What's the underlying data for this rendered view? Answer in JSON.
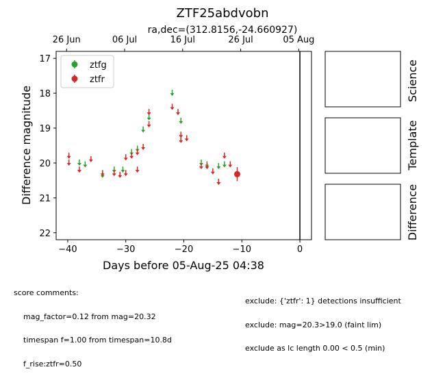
{
  "title": "ZTF25abdvobn",
  "subtitle": "ra,dec=(312.8156,-24.660927)",
  "chart_data": {
    "type": "scatter",
    "xlabel": "Days before 05-Aug-25 04:38",
    "ylabel": "Difference magnitude",
    "xlim": [
      -42,
      2
    ],
    "ylim": [
      22.2,
      16.8
    ],
    "y_inverted": true,
    "xticks": [
      -40,
      -30,
      -20,
      -10,
      0
    ],
    "yticks": [
      17,
      18,
      19,
      20,
      21,
      22
    ],
    "top_axis_ticks": [
      {
        "x": -40.2,
        "label": "26 Jun"
      },
      {
        "x": -30.2,
        "label": "06 Jul"
      },
      {
        "x": -20.2,
        "label": "16 Jul"
      },
      {
        "x": -10.2,
        "label": "26 Jul"
      },
      {
        "x": -0.2,
        "label": "05 Aug"
      }
    ],
    "vline_x": 0,
    "legend_position": "upper-left",
    "series": [
      {
        "name": "ztfg",
        "color": "#2ca02c",
        "upper_limits": [
          [
            -38,
            20.0
          ],
          [
            -37,
            20.05
          ],
          [
            -34,
            20.35
          ],
          [
            -32,
            20.2
          ],
          [
            -30.5,
            20.2
          ],
          [
            -29,
            19.7
          ],
          [
            -28,
            19.6
          ],
          [
            -27,
            19.05
          ],
          [
            -26,
            18.7
          ],
          [
            -22,
            18.0
          ],
          [
            -20.5,
            18.8
          ],
          [
            -17,
            20.0
          ],
          [
            -16,
            20.05
          ],
          [
            -14,
            20.1
          ],
          [
            -13,
            20.05
          ],
          [
            -14,
            20.55
          ]
        ],
        "detections": []
      },
      {
        "name": "ztfr",
        "color": "#d62728",
        "upper_limits": [
          [
            -39.8,
            19.8
          ],
          [
            -39.8,
            20.0
          ],
          [
            -38,
            20.2
          ],
          [
            -36,
            19.9
          ],
          [
            -34,
            20.3
          ],
          [
            -32,
            20.3
          ],
          [
            -31,
            20.35
          ],
          [
            -30,
            20.3
          ],
          [
            -30,
            19.85
          ],
          [
            -29,
            19.8
          ],
          [
            -28,
            19.7
          ],
          [
            -28,
            20.2
          ],
          [
            -27,
            19.55
          ],
          [
            -26,
            18.9
          ],
          [
            -26,
            18.55
          ],
          [
            -22,
            18.4
          ],
          [
            -21,
            18.55
          ],
          [
            -20.5,
            19.2
          ],
          [
            -20.5,
            19.35
          ],
          [
            -19.5,
            19.3
          ],
          [
            -17,
            20.1
          ],
          [
            -16,
            20.1
          ],
          [
            -15,
            20.25
          ],
          [
            -14,
            20.55
          ],
          [
            -13,
            19.8
          ],
          [
            -12,
            20.05
          ]
        ],
        "detections": [
          {
            "x": -10.8,
            "y": 20.32,
            "err": 0.2
          }
        ]
      }
    ],
    "stamp_labels": [
      "Science",
      "Template",
      "Difference"
    ]
  },
  "comments_left": {
    "header": "score comments:",
    "lines": [
      "mag_factor=0.12 from mag=20.32",
      "timespan f=1.00 from timespan=10.8d",
      "f_rise:ztfr=0.50"
    ]
  },
  "comments_right": {
    "lines": [
      "exclude: {'ztfr': 1} detections insufficient",
      "exclude: mag=20.3>19.0 (faint lim)",
      "exclude as lc length 0.00 < 0.5 (min)"
    ]
  }
}
